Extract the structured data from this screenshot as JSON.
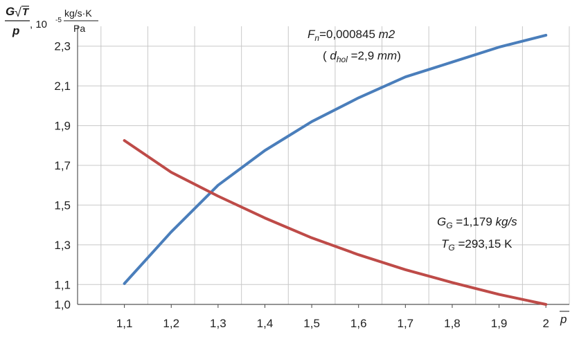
{
  "chart_data": {
    "type": "line",
    "title": "",
    "ylabel": {
      "G": "G",
      "T": "T",
      "p": "p",
      "scale_prefix": ", 10",
      "scale_exponent": "-5",
      "unit_numerator": "kg/s·K",
      "unit_denominator": "Pa"
    },
    "xlabel": "p",
    "x_ticks": [
      "1,1",
      "1,2",
      "1,3",
      "1,4",
      "1,5",
      "1,6",
      "1,7",
      "1,8",
      "1,9",
      "2"
    ],
    "x_tick_values": [
      1.1,
      1.2,
      1.3,
      1.4,
      1.5,
      1.6,
      1.7,
      1.8,
      1.9,
      2.0
    ],
    "y_ticks": [
      "1,0",
      "1,1",
      "1,3",
      "1,5",
      "1,7",
      "1,9",
      "2,1",
      "2,3"
    ],
    "y_tick_values": [
      1.0,
      1.1,
      1.3,
      1.5,
      1.7,
      1.9,
      2.1,
      2.3
    ],
    "xlim": [
      1.0,
      2.05
    ],
    "ylim": [
      1.0,
      2.4
    ],
    "grid": true,
    "series": [
      {
        "name": "blue",
        "color": "#4a7ebb",
        "x": [
          1.1,
          1.2,
          1.3,
          1.4,
          1.5,
          1.6,
          1.7,
          1.8,
          1.9,
          2.0
        ],
        "y": [
          1.105,
          1.365,
          1.6,
          1.775,
          1.92,
          2.04,
          2.145,
          2.22,
          2.295,
          2.355
        ]
      },
      {
        "name": "red",
        "color": "#be4b48",
        "x": [
          1.1,
          1.2,
          1.3,
          1.4,
          1.5,
          1.6,
          1.7,
          1.8,
          1.9,
          2.0
        ],
        "y": [
          1.825,
          1.665,
          1.545,
          1.435,
          1.335,
          1.25,
          1.175,
          1.11,
          1.05,
          1.0
        ]
      }
    ],
    "annotations": {
      "fn": {
        "symbol": "F",
        "sub": "n",
        "value": "=0,000845 ",
        "unit": "m2"
      },
      "dhol": {
        "open": "( ",
        "symbol": "d",
        "sub": "hol",
        "value": " =2,9 ",
        "unit": "mm",
        "close": ")"
      },
      "gg": {
        "symbol": "G",
        "sub": "G",
        "value": " =1,179 ",
        "unit": "kg/s"
      },
      "tg": {
        "symbol": "T",
        "sub": "G",
        "value": " =293,15 K"
      }
    }
  }
}
